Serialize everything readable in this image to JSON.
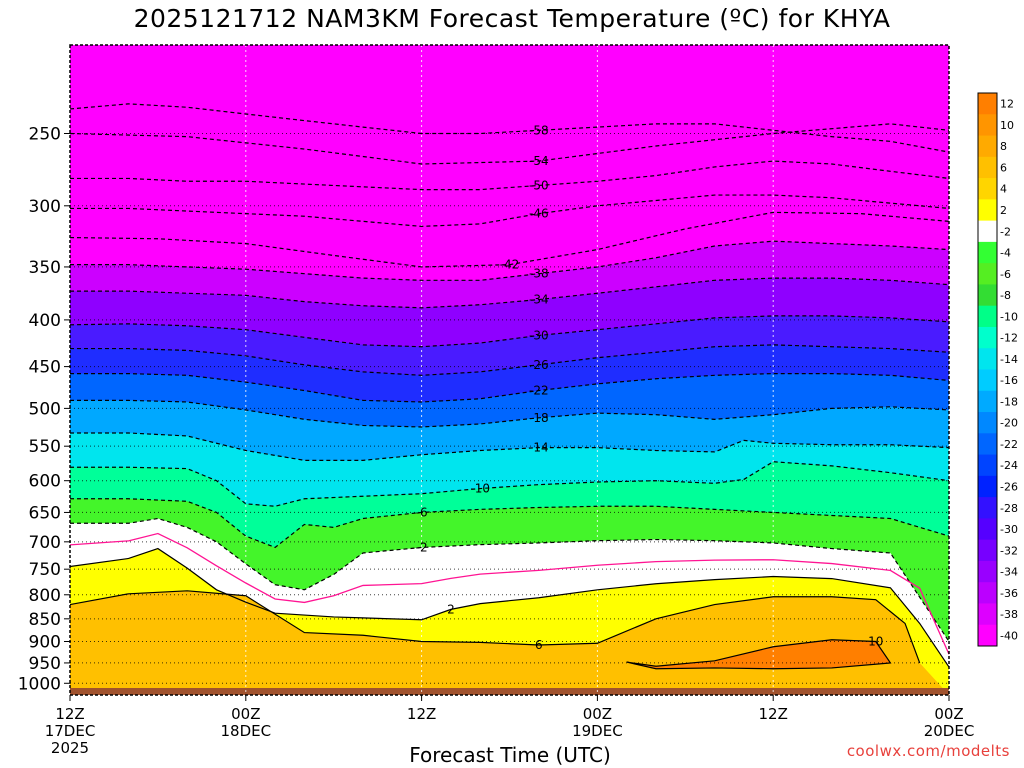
{
  "title": "2025121712 NAM3KM Forecast Temperature (ºC) for KHYA",
  "credit": "coolwx.com/modelts",
  "chart_data": {
    "type": "heatmap",
    "title": "2025121712 NAM3KM Forecast Temperature (ºC) for KHYA",
    "xlabel": "Forecast Time (UTC)",
    "ylabel": "",
    "x_range_hours": [
      0,
      60
    ],
    "y_range_hpa": [
      1030,
      200
    ],
    "y_scale": "log",
    "y_ticks": [
      250,
      300,
      350,
      400,
      450,
      500,
      550,
      600,
      650,
      700,
      750,
      800,
      850,
      900,
      950,
      1000
    ],
    "x_ticks": [
      {
        "hour": 0,
        "lines": [
          "12Z",
          "17DEC",
          "2025"
        ]
      },
      {
        "hour": 12,
        "lines": [
          "00Z",
          "18DEC"
        ]
      },
      {
        "hour": 24,
        "lines": [
          "12Z"
        ]
      },
      {
        "hour": 36,
        "lines": [
          "00Z",
          "19DEC"
        ]
      },
      {
        "hour": 48,
        "lines": [
          "12Z"
        ]
      },
      {
        "hour": 60,
        "lines": [
          "00Z",
          "20DEC"
        ]
      }
    ],
    "colorbar": {
      "labels": [
        "12",
        "10",
        "8",
        "6",
        "4",
        "2",
        "-2",
        "-4",
        "-6",
        "-8",
        "-10",
        "-12",
        "-14",
        "-16",
        "-18",
        "-20",
        "-22",
        "-24",
        "-26",
        "-28",
        "-30",
        "-32",
        "-34",
        "-36",
        "-38",
        "-40"
      ],
      "colors": [
        "#ff7f00",
        "#ff9500",
        "#ffaa00",
        "#ffc000",
        "#ffd500",
        "#ffff00",
        "#ffffff",
        "#33ff33",
        "#55ee22",
        "#33dd33",
        "#00ff88",
        "#00ffcc",
        "#00e5ee",
        "#00ccff",
        "#00aaff",
        "#0088ff",
        "#0066ff",
        "#0044ff",
        "#0022ff",
        "#3311ff",
        "#5500ff",
        "#7700ff",
        "#9900ff",
        "#bb00ff",
        "#dd00ff",
        "#ff00ff"
      ]
    },
    "series": [
      {
        "name": "-58",
        "values": [
          [
            0,
            235
          ],
          [
            4,
            232
          ],
          [
            8,
            234
          ],
          [
            12,
            238
          ],
          [
            16,
            242
          ],
          [
            20,
            246
          ],
          [
            24,
            250
          ],
          [
            28,
            250
          ],
          [
            32,
            248
          ],
          [
            36,
            246
          ],
          [
            40,
            244
          ],
          [
            44,
            244
          ],
          [
            48,
            248
          ],
          [
            52,
            252
          ],
          [
            56,
            255
          ],
          [
            60,
            262
          ]
        ]
      },
      {
        "name": "-54",
        "values": [
          [
            0,
            250
          ],
          [
            8,
            252
          ],
          [
            16,
            260
          ],
          [
            24,
            270
          ],
          [
            32,
            268
          ],
          [
            40,
            258
          ],
          [
            48,
            250
          ],
          [
            56,
            244
          ],
          [
            60,
            248
          ]
        ]
      },
      {
        "name": "-50",
        "values": [
          [
            0,
            280
          ],
          [
            4,
            280
          ],
          [
            8,
            282
          ],
          [
            12,
            282
          ],
          [
            16,
            284
          ],
          [
            20,
            286
          ],
          [
            24,
            288
          ],
          [
            28,
            288
          ],
          [
            32,
            285
          ],
          [
            36,
            282
          ],
          [
            40,
            278
          ],
          [
            44,
            272
          ],
          [
            48,
            268
          ],
          [
            52,
            270
          ],
          [
            56,
            275
          ],
          [
            60,
            280
          ]
        ]
      },
      {
        "name": "-46",
        "values": [
          [
            0,
            302
          ],
          [
            4,
            302
          ],
          [
            8,
            304
          ],
          [
            12,
            306
          ],
          [
            16,
            308
          ],
          [
            20,
            312
          ],
          [
            24,
            316
          ],
          [
            28,
            314
          ],
          [
            32,
            306
          ],
          [
            36,
            300
          ],
          [
            40,
            296
          ],
          [
            44,
            292
          ],
          [
            48,
            292
          ],
          [
            52,
            294
          ],
          [
            56,
            298
          ],
          [
            60,
            302
          ]
        ]
      },
      {
        "name": "-42",
        "values": [
          [
            0,
            325
          ],
          [
            6,
            326
          ],
          [
            12,
            330
          ],
          [
            18,
            340
          ],
          [
            24,
            350
          ],
          [
            30,
            348
          ],
          [
            36,
            335
          ],
          [
            42,
            318
          ],
          [
            48,
            305
          ],
          [
            54,
            306
          ],
          [
            60,
            312
          ]
        ]
      },
      {
        "name": "-38",
        "values": [
          [
            0,
            348
          ],
          [
            4,
            348
          ],
          [
            8,
            350
          ],
          [
            12,
            352
          ],
          [
            16,
            356
          ],
          [
            20,
            360
          ],
          [
            24,
            362
          ],
          [
            28,
            362
          ],
          [
            32,
            356
          ],
          [
            36,
            350
          ],
          [
            40,
            342
          ],
          [
            44,
            332
          ],
          [
            48,
            328
          ],
          [
            52,
            330
          ],
          [
            56,
            332
          ],
          [
            60,
            335
          ]
        ]
      },
      {
        "name": "-34",
        "values": [
          [
            0,
            372
          ],
          [
            4,
            372
          ],
          [
            8,
            374
          ],
          [
            12,
            376
          ],
          [
            16,
            382
          ],
          [
            20,
            386
          ],
          [
            24,
            388
          ],
          [
            28,
            385
          ],
          [
            32,
            380
          ],
          [
            36,
            374
          ],
          [
            40,
            368
          ],
          [
            44,
            362
          ],
          [
            48,
            360
          ],
          [
            52,
            360
          ],
          [
            56,
            362
          ],
          [
            60,
            366
          ]
        ]
      },
      {
        "name": "-30",
        "values": [
          [
            0,
            405
          ],
          [
            4,
            404
          ],
          [
            8,
            406
          ],
          [
            12,
            410
          ],
          [
            16,
            418
          ],
          [
            20,
            426
          ],
          [
            24,
            428
          ],
          [
            28,
            424
          ],
          [
            32,
            416
          ],
          [
            36,
            410
          ],
          [
            40,
            404
          ],
          [
            44,
            398
          ],
          [
            48,
            396
          ],
          [
            52,
            396
          ],
          [
            56,
            398
          ],
          [
            60,
            402
          ]
        ]
      },
      {
        "name": "-26",
        "values": [
          [
            0,
            430
          ],
          [
            4,
            430
          ],
          [
            8,
            432
          ],
          [
            12,
            438
          ],
          [
            16,
            448
          ],
          [
            20,
            456
          ],
          [
            24,
            460
          ],
          [
            28,
            456
          ],
          [
            32,
            448
          ],
          [
            36,
            440
          ],
          [
            40,
            434
          ],
          [
            44,
            428
          ],
          [
            48,
            426
          ],
          [
            52,
            428
          ],
          [
            56,
            430
          ],
          [
            60,
            434
          ]
        ]
      },
      {
        "name": "-22",
        "values": [
          [
            0,
            458
          ],
          [
            4,
            458
          ],
          [
            8,
            460
          ],
          [
            12,
            468
          ],
          [
            16,
            478
          ],
          [
            20,
            490
          ],
          [
            24,
            492
          ],
          [
            28,
            488
          ],
          [
            32,
            478
          ],
          [
            36,
            470
          ],
          [
            40,
            464
          ],
          [
            44,
            460
          ],
          [
            48,
            458
          ],
          [
            52,
            458
          ],
          [
            56,
            460
          ],
          [
            60,
            466
          ]
        ]
      },
      {
        "name": "-18",
        "values": [
          [
            0,
            490
          ],
          [
            4,
            490
          ],
          [
            8,
            492
          ],
          [
            12,
            502
          ],
          [
            16,
            514
          ],
          [
            20,
            522
          ],
          [
            24,
            524
          ],
          [
            28,
            520
          ],
          [
            32,
            512
          ],
          [
            36,
            506
          ],
          [
            40,
            508
          ],
          [
            44,
            514
          ],
          [
            48,
            508
          ],
          [
            52,
            500
          ],
          [
            56,
            498
          ],
          [
            60,
            502
          ]
        ]
      },
      {
        "name": "-14",
        "values": [
          [
            0,
            532
          ],
          [
            4,
            532
          ],
          [
            8,
            536
          ],
          [
            12,
            556
          ],
          [
            16,
            570
          ],
          [
            20,
            570
          ],
          [
            24,
            562
          ],
          [
            28,
            556
          ],
          [
            32,
            552
          ],
          [
            36,
            552
          ],
          [
            40,
            556
          ],
          [
            44,
            558
          ],
          [
            46,
            542
          ],
          [
            48,
            546
          ],
          [
            52,
            548
          ],
          [
            56,
            548
          ],
          [
            60,
            552
          ]
        ]
      },
      {
        "name": "-10",
        "values": [
          [
            0,
            580
          ],
          [
            4,
            580
          ],
          [
            8,
            582
          ],
          [
            10,
            600
          ],
          [
            12,
            636
          ],
          [
            14,
            640
          ],
          [
            16,
            628
          ],
          [
            20,
            624
          ],
          [
            24,
            620
          ],
          [
            28,
            612
          ],
          [
            32,
            606
          ],
          [
            36,
            602
          ],
          [
            40,
            600
          ],
          [
            44,
            604
          ],
          [
            46,
            598
          ],
          [
            48,
            572
          ],
          [
            52,
            578
          ],
          [
            56,
            588
          ],
          [
            60,
            600
          ]
        ]
      },
      {
        "name": "-6",
        "values": [
          [
            0,
            628
          ],
          [
            4,
            628
          ],
          [
            6,
            630
          ],
          [
            8,
            632
          ],
          [
            10,
            650
          ],
          [
            12,
            690
          ],
          [
            14,
            710
          ],
          [
            16,
            670
          ],
          [
            18,
            675
          ],
          [
            20,
            660
          ],
          [
            24,
            650
          ],
          [
            28,
            645
          ],
          [
            32,
            642
          ],
          [
            36,
            640
          ],
          [
            40,
            640
          ],
          [
            44,
            645
          ],
          [
            48,
            650
          ],
          [
            52,
            655
          ],
          [
            56,
            660
          ],
          [
            60,
            690
          ]
        ]
      },
      {
        "name": "-2",
        "values": [
          [
            0,
            668
          ],
          [
            4,
            668
          ],
          [
            6,
            660
          ],
          [
            8,
            675
          ],
          [
            10,
            700
          ],
          [
            12,
            740
          ],
          [
            14,
            780
          ],
          [
            16,
            790
          ],
          [
            18,
            760
          ],
          [
            20,
            720
          ],
          [
            24,
            710
          ],
          [
            28,
            705
          ],
          [
            32,
            702
          ],
          [
            36,
            698
          ],
          [
            40,
            696
          ],
          [
            44,
            698
          ],
          [
            48,
            702
          ],
          [
            52,
            712
          ],
          [
            56,
            720
          ],
          [
            60,
            900
          ]
        ]
      },
      {
        "name": "2",
        "values": [
          [
            0,
            745
          ],
          [
            4,
            730
          ],
          [
            6,
            712
          ],
          [
            8,
            748
          ],
          [
            10,
            790
          ],
          [
            12,
            815
          ],
          [
            14,
            838
          ],
          [
            16,
            842
          ],
          [
            18,
            846
          ],
          [
            20,
            848
          ],
          [
            24,
            852
          ],
          [
            26,
            830
          ],
          [
            28,
            818
          ],
          [
            32,
            806
          ],
          [
            36,
            790
          ],
          [
            40,
            778
          ],
          [
            44,
            770
          ],
          [
            48,
            764
          ],
          [
            52,
            768
          ],
          [
            56,
            786
          ],
          [
            58,
            860
          ],
          [
            60,
            960
          ]
        ]
      },
      {
        "name": "6",
        "values": [
          [
            0,
            820
          ],
          [
            4,
            798
          ],
          [
            8,
            792
          ],
          [
            12,
            802
          ],
          [
            16,
            880
          ],
          [
            20,
            886
          ],
          [
            24,
            900
          ],
          [
            28,
            902
          ],
          [
            32,
            908
          ],
          [
            36,
            904
          ],
          [
            40,
            850
          ],
          [
            44,
            820
          ],
          [
            48,
            804
          ],
          [
            52,
            804
          ],
          [
            55,
            810
          ],
          [
            57,
            860
          ],
          [
            58,
            950
          ]
        ]
      },
      {
        "name": "10",
        "values": [
          [
            38,
            948
          ],
          [
            40,
            958
          ],
          [
            44,
            945
          ],
          [
            48,
            912
          ],
          [
            52,
            896
          ],
          [
            55,
            900
          ],
          [
            56,
            950
          ],
          [
            52,
            962
          ],
          [
            48,
            964
          ],
          [
            44,
            962
          ],
          [
            40,
            964
          ]
        ]
      }
    ]
  }
}
